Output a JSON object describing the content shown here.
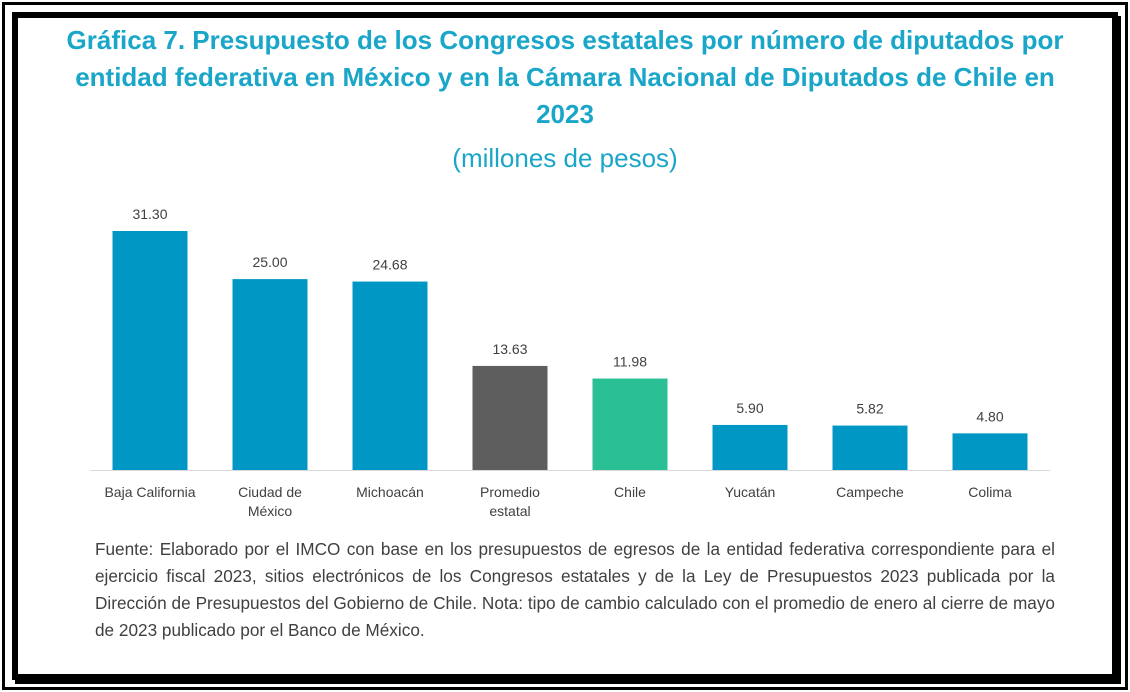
{
  "chart_data": {
    "type": "bar",
    "title": "Gráfica 7. Presupuesto de los Congresos estatales por número de diputados por entidad federativa en México y en la Cámara Nacional de Diputados de Chile en 2023",
    "subtitle": "(millones de pesos)",
    "xlabel": "",
    "ylabel": "",
    "ylim": [
      0,
      31.3
    ],
    "grid": false,
    "categories": [
      [
        "Baja California"
      ],
      [
        "Ciudad de",
        "México"
      ],
      [
        "Michoacán"
      ],
      [
        "Promedio",
        "estatal"
      ],
      [
        "Chile"
      ],
      [
        "Yucatán"
      ],
      [
        "Campeche"
      ],
      [
        "Colima"
      ]
    ],
    "values": [
      31.3,
      25.0,
      24.68,
      13.63,
      11.98,
      5.9,
      5.82,
      4.8
    ],
    "value_labels": [
      "31.30",
      "25.00",
      "24.68",
      "13.63",
      "11.98",
      "5.90",
      "5.82",
      "4.80"
    ],
    "colors": [
      "#0097c4",
      "#0097c4",
      "#0097c4",
      "#5e5e5e",
      "#2bbf95",
      "#0097c4",
      "#0097c4",
      "#0097c4"
    ]
  },
  "source_note": "Fuente: Elaborado por el IMCO con base en los presupuestos de egresos de la entidad federativa correspondiente para el ejercicio fiscal 2023, sitios electrónicos de los Congresos estatales y de la Ley de Presupuestos 2023 publicada por la Dirección de Presupuestos del Gobierno de Chile. Nota: tipo de cambio calculado con el promedio de enero al cierre de mayo de 2023 publicado por el Banco de México."
}
